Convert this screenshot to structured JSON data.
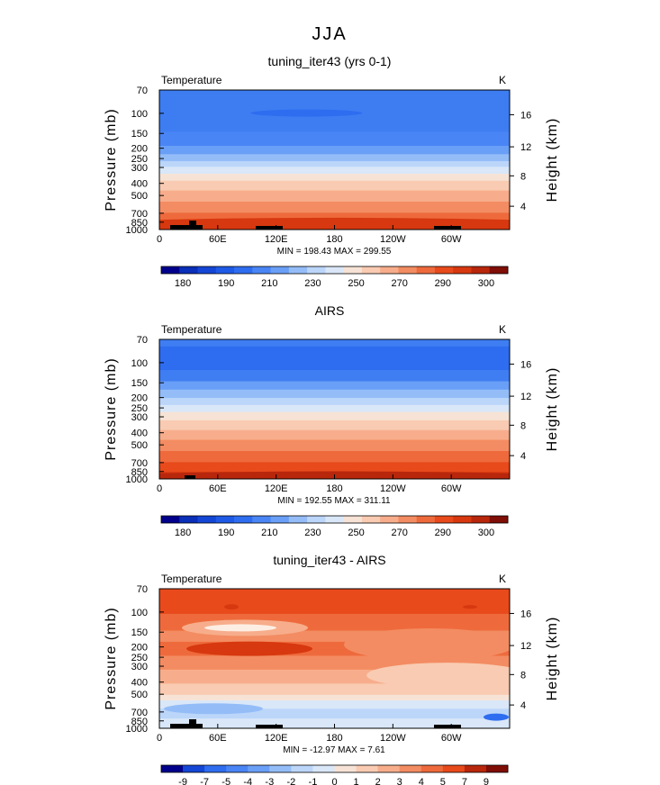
{
  "figure": {
    "season": "JJA",
    "lat_axis_labels": [
      "0",
      "60E",
      "120E",
      "180",
      "120W",
      "60W"
    ],
    "pressure_axis_label": "Pressure (mb)",
    "height_axis_label": "Height (km)",
    "pressure_ticks": [
      "70",
      "100",
      "150",
      "200",
      "250",
      "300",
      "400",
      "500",
      "700",
      "850",
      "1000"
    ],
    "height_ticks": [
      "16",
      "12",
      "8",
      "4"
    ]
  },
  "chart_data": [
    {
      "type": "heatmap",
      "title": "tuning_iter43 (yrs 0-1)",
      "variable": "Temperature",
      "units": "K",
      "xlabel": "",
      "ylabel": "Pressure (mb)",
      "y2label": "Height (km)",
      "x_ticks": [
        "0",
        "60E",
        "120E",
        "180",
        "120W",
        "60W"
      ],
      "y_ticks": [
        "70",
        "100",
        "150",
        "200",
        "250",
        "300",
        "400",
        "500",
        "700",
        "850",
        "1000"
      ],
      "y2_ticks": [
        "16",
        "12",
        "8",
        "4"
      ],
      "stats": "MIN = 198.43   MAX = 299.55",
      "colorbar_labels": [
        "180",
        "190",
        "210",
        "230",
        "250",
        "270",
        "290",
        "300"
      ],
      "min": 198.43,
      "max": 299.55
    },
    {
      "type": "heatmap",
      "title": "AIRS",
      "variable": "Temperature",
      "units": "K",
      "xlabel": "",
      "ylabel": "Pressure (mb)",
      "y2label": "Height (km)",
      "x_ticks": [
        "0",
        "60E",
        "120E",
        "180",
        "120W",
        "60W"
      ],
      "y_ticks": [
        "70",
        "100",
        "150",
        "200",
        "250",
        "300",
        "400",
        "500",
        "700",
        "850",
        "1000"
      ],
      "y2_ticks": [
        "16",
        "12",
        "8",
        "4"
      ],
      "stats": "MIN = 192.55   MAX = 311.11",
      "colorbar_labels": [
        "180",
        "190",
        "210",
        "230",
        "250",
        "270",
        "290",
        "300"
      ],
      "min": 192.55,
      "max": 311.11
    },
    {
      "type": "heatmap",
      "title": "tuning_iter43 - AIRS",
      "variable": "Temperature",
      "units": "K",
      "xlabel": "",
      "ylabel": "Pressure (mb)",
      "y2label": "Height (km)",
      "x_ticks": [
        "0",
        "60E",
        "120E",
        "180",
        "120W",
        "60W"
      ],
      "y_ticks": [
        "70",
        "100",
        "150",
        "200",
        "250",
        "300",
        "400",
        "500",
        "700",
        "850",
        "1000"
      ],
      "y2_ticks": [
        "16",
        "12",
        "8",
        "4"
      ],
      "stats": "MIN = -12.97   MAX =    7.61",
      "colorbar_labels": [
        "-9",
        "-7",
        "-5",
        "-4",
        "-3",
        "-2",
        "-1",
        "0",
        "1",
        "2",
        "3",
        "4",
        "5",
        "7",
        "9"
      ],
      "min": -12.97,
      "max": 7.61
    }
  ],
  "colors": {
    "palette": [
      "#00008b",
      "#0a2fb8",
      "#1446d6",
      "#1e5ae6",
      "#2e6df0",
      "#4a85f5",
      "#6a9ff7",
      "#94bdf8",
      "#bcd6fa",
      "#d9e7f8",
      "#f6e3d6",
      "#f9cbb2",
      "#f7ad8b",
      "#f38c62",
      "#ee6a3c",
      "#e84a1c",
      "#d7380f",
      "#b8270c",
      "#7f0e06"
    ],
    "field1_bands": [
      "#3f7ef2",
      "#4a85f5",
      "#6a9ff7",
      "#94bdf8",
      "#bcd6fa",
      "#d9e7f8",
      "#f6e3d6",
      "#f9cbb2",
      "#f7ad8b",
      "#f38c62",
      "#ee6a3c",
      "#e84a1c"
    ],
    "field2_bands": [
      "#3f7ef2",
      "#2e6df0",
      "#3f7ef2",
      "#6a9ff7",
      "#94bdf8",
      "#bcd6fa",
      "#d9e7f8",
      "#f6e3d6",
      "#f9cbb2",
      "#f7ad8b",
      "#f38c62",
      "#ee6a3c",
      "#e84a1c",
      "#d7380f"
    ],
    "diff_bands": [
      "#e84a1c",
      "#ee6a3c",
      "#f38c62",
      "#ee6a3c",
      "#f38c62",
      "#f7ad8b",
      "#f9cbb2",
      "#f6e3d6",
      "#d9e7f8",
      "#bcd6fa",
      "#d9e7f8"
    ],
    "diff_palette": [
      "#00008b",
      "#1446d6",
      "#2e6df0",
      "#4a85f5",
      "#6a9ff7",
      "#94bdf8",
      "#bcd6fa",
      "#d9e7f8",
      "#f6e3d6",
      "#f9cbb2",
      "#f7ad8b",
      "#f38c62",
      "#ee6a3c",
      "#e84a1c",
      "#b8270c",
      "#7f0e06"
    ]
  }
}
